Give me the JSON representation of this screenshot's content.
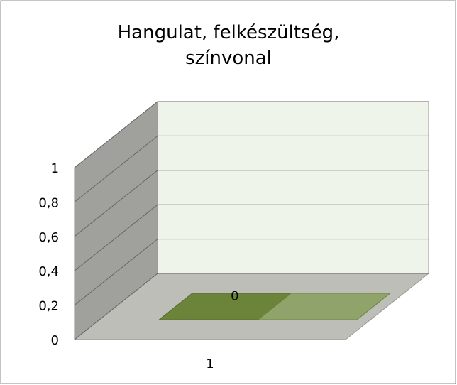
{
  "chart_data": {
    "type": "bar3d",
    "title": "Hangulat, felkészültség, színvonal",
    "categories": [
      "1"
    ],
    "series": [
      {
        "color": "#6b843a",
        "values": [
          0
        ],
        "value_labels": [
          "0"
        ]
      }
    ],
    "ylim": [
      0,
      1
    ],
    "yticks": [
      0,
      {
        "value": 0.2,
        "label": "0,2"
      },
      {
        "value": 0.4,
        "label": "0,4"
      },
      {
        "value": 0.6,
        "label": "0,6"
      },
      {
        "value": 0.8,
        "label": "0,8"
      },
      1
    ],
    "grid": true
  }
}
